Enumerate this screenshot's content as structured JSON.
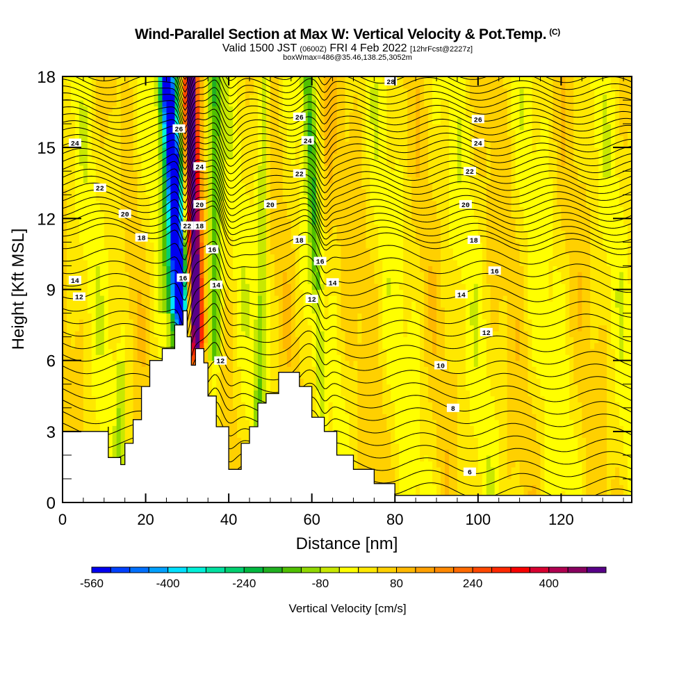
{
  "chart_data": {
    "type": "heatmap",
    "title": "Wind-Parallel Section at Max W: Vertical Velocity & Pot.Temp.",
    "title_mark": "(C)",
    "subtitle_valid": "Valid 1500 JST",
    "subtitle_utc": "(0600Z)",
    "subtitle_date": "FRI 4 Feb 2022",
    "subtitle_fcst": "[12hrFcst@2227z]",
    "subtitle_box": "boxWmax=486@35.46,138.25,3052m",
    "xlabel": "Distance [nm]",
    "ylabel": "Height [Kft MSL]",
    "xlim": [
      0,
      137
    ],
    "ylim": [
      0,
      18
    ],
    "x_ticks": [
      "0",
      "20",
      "40",
      "60",
      "80",
      "100",
      "120"
    ],
    "x_tick_values": [
      0,
      20,
      40,
      60,
      80,
      100,
      120
    ],
    "y_ticks": [
      "0",
      "3",
      "6",
      "9",
      "12",
      "15",
      "18"
    ],
    "y_tick_values": [
      0,
      3,
      6,
      9,
      12,
      15,
      18
    ],
    "colorbar": {
      "label": "Vertical Velocity [cm/s]",
      "tick_labels": [
        "-560",
        "-400",
        "-240",
        "-80",
        "80",
        "240",
        "400"
      ],
      "tick_values": [
        -560,
        -400,
        -240,
        -80,
        80,
        240,
        400
      ],
      "bounds": [
        -560,
        520
      ],
      "step": 40,
      "colors": [
        "#0000f0",
        "#0040ff",
        "#0070ff",
        "#00a0ff",
        "#00e0ff",
        "#00f0d8",
        "#00e0a0",
        "#00d070",
        "#00b840",
        "#20b020",
        "#50c000",
        "#90d800",
        "#c8e800",
        "#ffff00",
        "#ffe800",
        "#ffd000",
        "#ffb800",
        "#ffa000",
        "#ff8800",
        "#ff6a00",
        "#ff4800",
        "#ff2800",
        "#f80000",
        "#d80030",
        "#b00050",
        "#880060",
        "#580088"
      ]
    },
    "contour_field": "Potential Temperature",
    "contour_labels": [
      {
        "text": "28",
        "x": 79,
        "y": 17.8
      },
      {
        "text": "26",
        "x": 57,
        "y": 16.3
      },
      {
        "text": "26",
        "x": 100,
        "y": 16.2
      },
      {
        "text": "26",
        "x": 28,
        "y": 15.8
      },
      {
        "text": "24",
        "x": 3,
        "y": 15.2
      },
      {
        "text": "24",
        "x": 59,
        "y": 15.3
      },
      {
        "text": "24",
        "x": 100,
        "y": 15.2
      },
      {
        "text": "24",
        "x": 33,
        "y": 14.2
      },
      {
        "text": "22",
        "x": 9,
        "y": 13.3
      },
      {
        "text": "22",
        "x": 57,
        "y": 13.9
      },
      {
        "text": "22",
        "x": 98,
        "y": 14.0
      },
      {
        "text": "20",
        "x": 15,
        "y": 12.2
      },
      {
        "text": "20",
        "x": 50,
        "y": 12.6
      },
      {
        "text": "20",
        "x": 97,
        "y": 12.6
      },
      {
        "text": "20",
        "x": 33,
        "y": 12.6
      },
      {
        "text": "22",
        "x": 30,
        "y": 11.7
      },
      {
        "text": "18",
        "x": 33,
        "y": 11.7
      },
      {
        "text": "18",
        "x": 19,
        "y": 11.2
      },
      {
        "text": "18",
        "x": 57,
        "y": 11.1
      },
      {
        "text": "18",
        "x": 99,
        "y": 11.1
      },
      {
        "text": "16",
        "x": 36,
        "y": 10.7
      },
      {
        "text": "16",
        "x": 62,
        "y": 10.2
      },
      {
        "text": "16",
        "x": 104,
        "y": 9.8
      },
      {
        "text": "16",
        "x": 29,
        "y": 9.5
      },
      {
        "text": "14",
        "x": 3,
        "y": 9.4
      },
      {
        "text": "14",
        "x": 37,
        "y": 9.2
      },
      {
        "text": "14",
        "x": 65,
        "y": 9.3
      },
      {
        "text": "14",
        "x": 96,
        "y": 8.8
      },
      {
        "text": "12",
        "x": 4,
        "y": 8.7
      },
      {
        "text": "12",
        "x": 60,
        "y": 8.6
      },
      {
        "text": "12",
        "x": 102,
        "y": 7.2
      },
      {
        "text": "12",
        "x": 38,
        "y": 6.0
      },
      {
        "text": "10",
        "x": 91,
        "y": 5.8
      },
      {
        "text": "8",
        "x": 94,
        "y": 4.0
      },
      {
        "text": "6",
        "x": 98,
        "y": 1.3
      }
    ],
    "terrain_heights_kft": [
      {
        "x": 0,
        "h": 3.0
      },
      {
        "x": 11,
        "h": 3.2
      },
      {
        "x": 11,
        "h": 1.9
      },
      {
        "x": 14,
        "h": 1.6
      },
      {
        "x": 15,
        "h": 2.5
      },
      {
        "x": 17,
        "h": 3.5
      },
      {
        "x": 19,
        "h": 4.9
      },
      {
        "x": 21,
        "h": 6.0
      },
      {
        "x": 24,
        "h": 6.5
      },
      {
        "x": 27,
        "h": 7.5
      },
      {
        "x": 29,
        "h": 8.1
      },
      {
        "x": 30,
        "h": 7.0
      },
      {
        "x": 31,
        "h": 5.8
      },
      {
        "x": 32,
        "h": 6.5
      },
      {
        "x": 34,
        "h": 5.9
      },
      {
        "x": 35,
        "h": 4.5
      },
      {
        "x": 37,
        "h": 3.2
      },
      {
        "x": 40,
        "h": 1.4
      },
      {
        "x": 43,
        "h": 2.5
      },
      {
        "x": 45,
        "h": 3.2
      },
      {
        "x": 47,
        "h": 4.2
      },
      {
        "x": 49,
        "h": 4.6
      },
      {
        "x": 52,
        "h": 5.5
      },
      {
        "x": 55,
        "h": 5.5
      },
      {
        "x": 57,
        "h": 4.9
      },
      {
        "x": 60,
        "h": 3.6
      },
      {
        "x": 63,
        "h": 3.0
      },
      {
        "x": 66,
        "h": 2.0
      },
      {
        "x": 70,
        "h": 1.4
      },
      {
        "x": 75,
        "h": 0.8
      },
      {
        "x": 80,
        "h": 0.3
      },
      {
        "x": 84,
        "h": 0.3
      },
      {
        "x": 137,
        "h": 0.3
      }
    ]
  }
}
